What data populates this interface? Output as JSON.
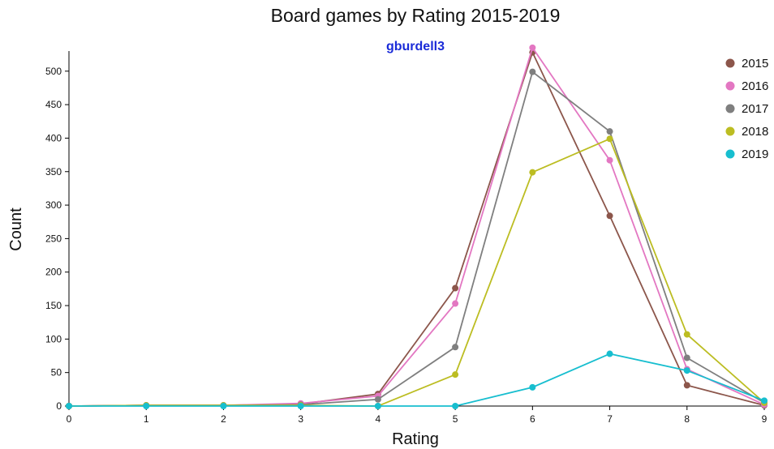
{
  "chart_data": {
    "type": "line",
    "title": "Board games by Rating 2015-2019",
    "subtitle": "gburdell3",
    "xlabel": "Rating",
    "ylabel": "Count",
    "x": [
      0,
      1,
      2,
      3,
      4,
      5,
      6,
      7,
      8,
      9
    ],
    "xlim": [
      0,
      9
    ],
    "ylim": [
      0,
      530
    ],
    "x_ticks": [
      "0",
      "1",
      "2",
      "3",
      "4",
      "5",
      "6",
      "7",
      "8",
      "9"
    ],
    "y_ticks": [
      "0",
      "50",
      "100",
      "150",
      "200",
      "250",
      "300",
      "350",
      "400",
      "450",
      "500"
    ],
    "legend_position": "top-right",
    "grid": false,
    "series": [
      {
        "name": "2015",
        "color": "#8c564b",
        "values": [
          0,
          1,
          1,
          3,
          18,
          176,
          528,
          284,
          31,
          1
        ]
      },
      {
        "name": "2016",
        "color": "#e377c2",
        "values": [
          0,
          1,
          1,
          4,
          15,
          153,
          535,
          367,
          55,
          2
        ]
      },
      {
        "name": "2017",
        "color": "#7f7f7f",
        "values": [
          0,
          1,
          1,
          2,
          10,
          88,
          499,
          410,
          72,
          5
        ]
      },
      {
        "name": "2018",
        "color": "#bcbd22",
        "values": [
          0,
          1,
          1,
          1,
          0,
          47,
          349,
          399,
          107,
          5
        ]
      },
      {
        "name": "2019",
        "color": "#17becf",
        "values": [
          0,
          0,
          0,
          0,
          0,
          0,
          28,
          78,
          53,
          8
        ]
      }
    ]
  }
}
